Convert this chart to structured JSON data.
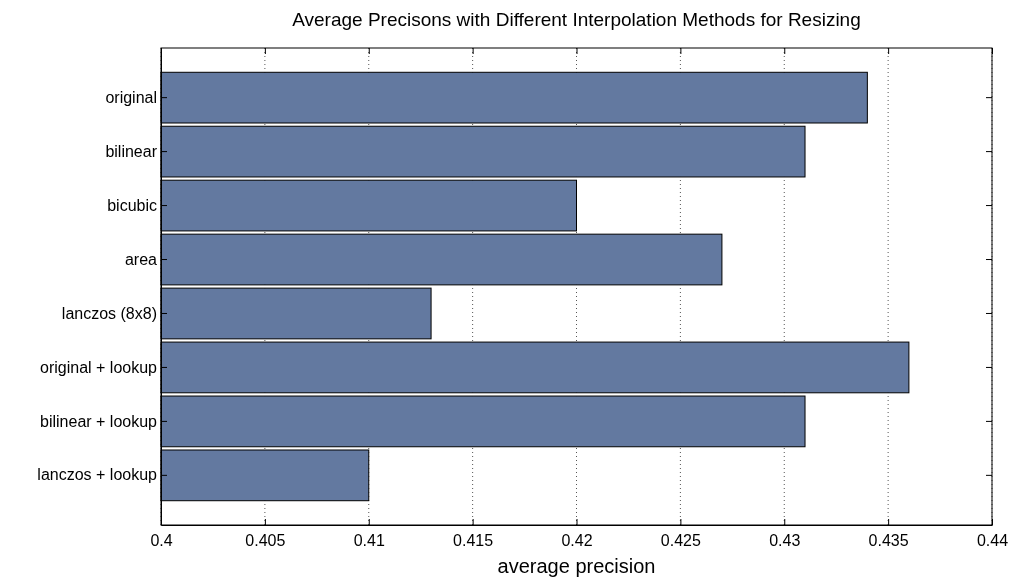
{
  "chart_data": {
    "type": "bar",
    "orientation": "horizontal",
    "title": "Average Precisons with Different Interpolation Methods for Resizing",
    "xlabel": "average precision",
    "categories": [
      "original",
      "bilinear",
      "bicubic",
      "area",
      "lanczos (8x8)",
      "original + lookup",
      "bilinear + lookup",
      "lanczos + lookup"
    ],
    "values": [
      0.434,
      0.431,
      0.42,
      0.427,
      0.413,
      0.436,
      0.431,
      0.41
    ],
    "color": "#6379a0",
    "xlim": [
      0.4,
      0.44
    ],
    "xticks": [
      0.4,
      0.405,
      0.41,
      0.415,
      0.42,
      0.425,
      0.43,
      0.435,
      0.44
    ],
    "grid": "x"
  }
}
